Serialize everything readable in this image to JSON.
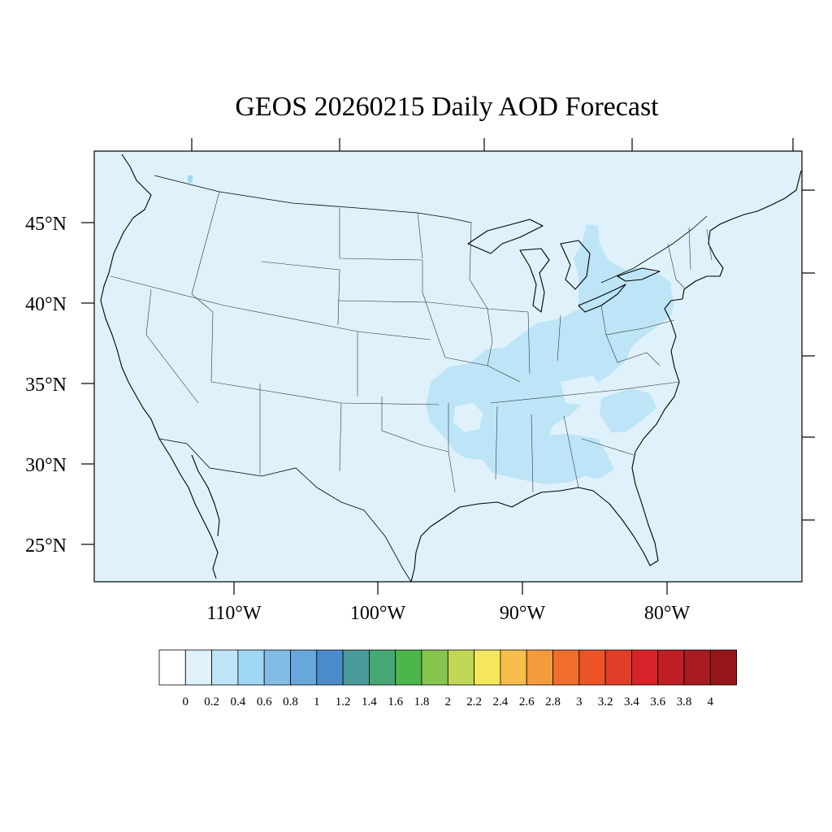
{
  "title": "GEOS 20260215 Daily AOD Forecast",
  "colors": {
    "background_field": "#dff2fb",
    "aod_0_2_0_4": "#bde5f7",
    "aod_0_4_0_6": "#a0d7f2"
  },
  "latitude_labels": [
    "45°N",
    "40°N",
    "35°N",
    "30°N",
    "25°N"
  ],
  "longitude_labels": [
    "110°W",
    "100°W",
    "90°W",
    "80°W"
  ],
  "colorbar": {
    "labels": [
      "0",
      "0.2",
      "0.4",
      "0.6",
      "0.8",
      "1",
      "1.2",
      "1.4",
      "1.6",
      "1.8",
      "2",
      "2.2",
      "2.4",
      "2.6",
      "2.8",
      "3",
      "3.2",
      "3.4",
      "3.6",
      "3.8",
      "4"
    ],
    "colors": [
      "#ffffff",
      "#dff2fb",
      "#bde5f7",
      "#a0d7f2",
      "#82bde6",
      "#67a7dd",
      "#4a8cca",
      "#4a9a9c",
      "#46a674",
      "#4bb649",
      "#86c54d",
      "#c2d755",
      "#f5e75b",
      "#f8bd4a",
      "#f59a3d",
      "#f26c2b",
      "#ec5329",
      "#e23d27",
      "#d72229",
      "#be1e24",
      "#a71b21",
      "#951519"
    ]
  }
}
